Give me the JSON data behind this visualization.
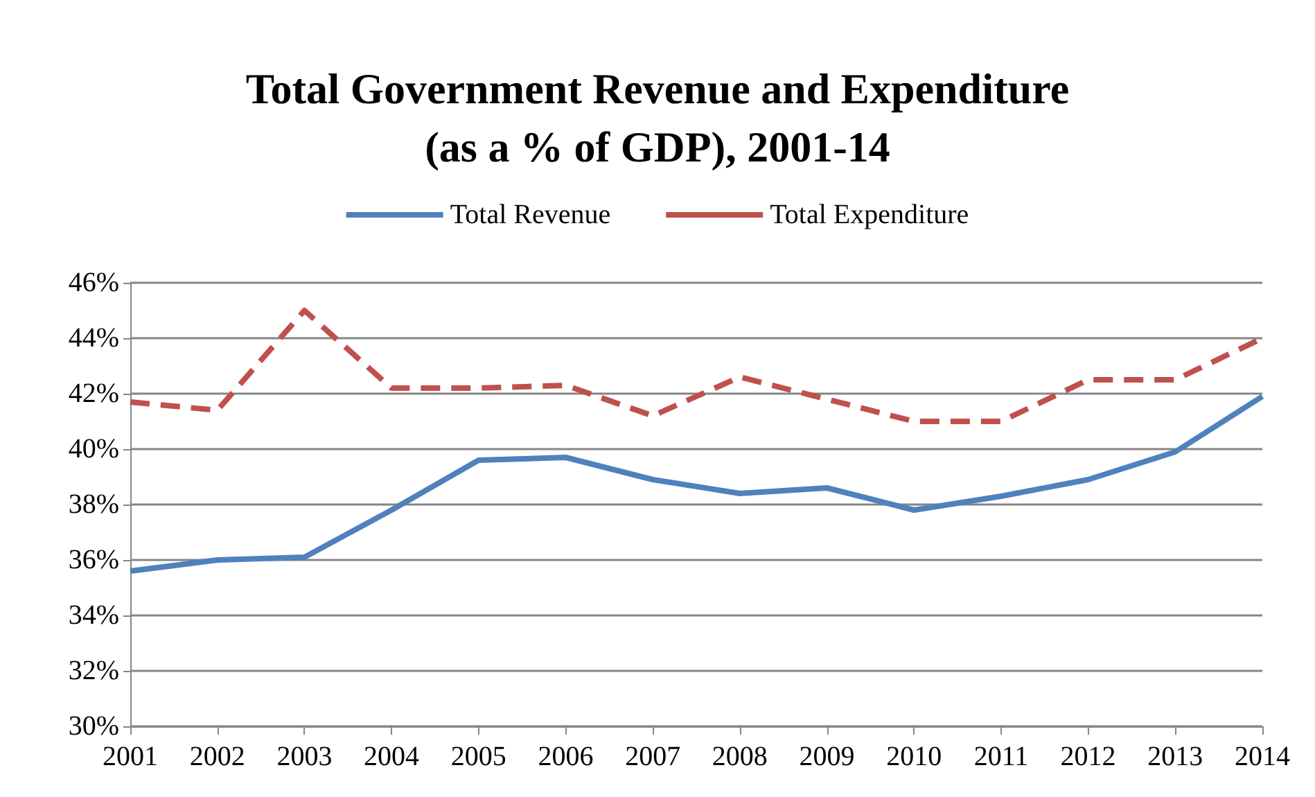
{
  "chart_data": {
    "type": "line",
    "title": "Total Government Revenue and Expenditure\n(as a % of GDP), 2001-14",
    "categories": [
      "2001",
      "2002",
      "2003",
      "2004",
      "2005",
      "2006",
      "2007",
      "2008",
      "2009",
      "2010",
      "2011",
      "2012",
      "2013",
      "2014"
    ],
    "series": [
      {
        "name": "Total Revenue",
        "color": "#4f81bd",
        "line_style": "solid",
        "values": [
          35.6,
          36.0,
          36.1,
          37.8,
          39.6,
          39.7,
          38.9,
          38.4,
          38.6,
          37.8,
          38.3,
          38.9,
          39.9,
          41.9
        ]
      },
      {
        "name": "Total Expenditure",
        "color": "#c0504d",
        "line_style": "dashed",
        "values": [
          41.7,
          41.4,
          45.0,
          42.2,
          42.2,
          42.3,
          41.2,
          42.6,
          41.8,
          41.0,
          41.0,
          42.5,
          42.5,
          44.0
        ]
      }
    ],
    "ylim": [
      30,
      46
    ],
    "yticks": [
      {
        "value": 30,
        "label": "30%"
      },
      {
        "value": 32,
        "label": "32%"
      },
      {
        "value": 34,
        "label": "34%"
      },
      {
        "value": 36,
        "label": "36%"
      },
      {
        "value": 38,
        "label": "38%"
      },
      {
        "value": 40,
        "label": "40%"
      },
      {
        "value": 42,
        "label": "42%"
      },
      {
        "value": 44,
        "label": "44%"
      },
      {
        "value": 46,
        "label": "46%"
      }
    ],
    "grid": "y",
    "legend": "top",
    "marker": "none"
  }
}
